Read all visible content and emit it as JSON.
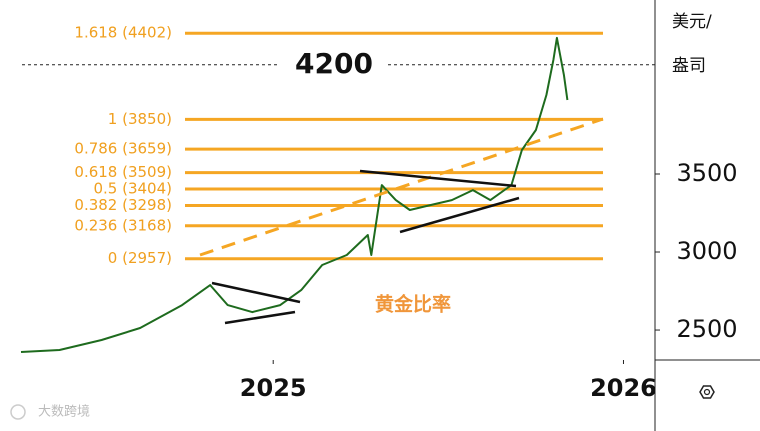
{
  "chart_data": {
    "type": "line",
    "y_axis_label": [
      "美元/",
      "盎司"
    ],
    "annotation": "黄金比率",
    "watermark": "大数跨境",
    "reference_line": 4200,
    "fib_levels": [
      {
        "value": 4402,
        "label": "1.618 (4402)"
      },
      {
        "value": 3850,
        "label": "1 (3850)"
      },
      {
        "value": 3659,
        "label": "0.786 (3659)"
      },
      {
        "value": 3509,
        "label": "0.618 (3509)"
      },
      {
        "value": 3404,
        "label": "0.5 (3404)"
      },
      {
        "value": 3298,
        "label": "0.382 (3298)"
      },
      {
        "value": 3168,
        "label": "0.236 (3168)"
      },
      {
        "value": 2957,
        "label": "0 (2957)"
      }
    ],
    "fib_color": "#f5a623",
    "x": [
      2024.28,
      2024.39,
      2024.51,
      2024.62,
      2024.74,
      2024.82,
      2024.87,
      2024.94,
      2025.02,
      2025.08,
      2025.14,
      2025.21,
      2025.27,
      2025.28,
      2025.31,
      2025.35,
      2025.39,
      2025.45,
      2025.51,
      2025.57,
      2025.62,
      2025.68,
      2025.71,
      2025.75,
      2025.78,
      2025.8,
      2025.81,
      2025.83,
      2025.84
    ],
    "series": [
      {
        "color": "#1e6b1e",
        "values": [
          2359,
          2372,
          2436,
          2513,
          2660,
          2788,
          2660,
          2615,
          2660,
          2756,
          2917,
          2981,
          3109,
          2981,
          3429,
          3333,
          3269,
          3301,
          3333,
          3397,
          3333,
          3429,
          3654,
          3782,
          4006,
          4231,
          4372,
          4135,
          3974
        ]
      }
    ],
    "xlim": [
      2024.22,
      2026.09
    ],
    "xticks": [
      2025,
      2026
    ],
    "ylim": [
      2308,
      4615
    ],
    "yticks": [
      2500,
      3000,
      3500
    ]
  }
}
